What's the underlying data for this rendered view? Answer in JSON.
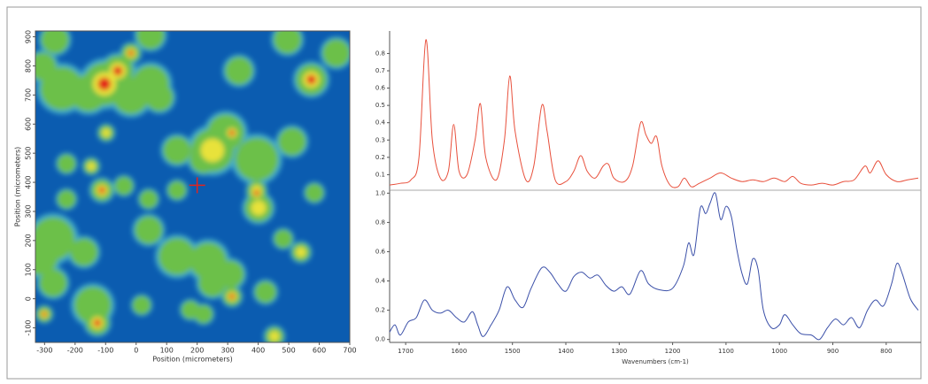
{
  "chart_data": [
    {
      "type": "heatmap",
      "xlabel": "Position (micrometers)",
      "ylabel": "Position (micrometers)",
      "xlim": [
        -330,
        700
      ],
      "ylim": [
        -150,
        920
      ],
      "xticks": [
        -300,
        -200,
        -100,
        0,
        100,
        200,
        300,
        400,
        500,
        600,
        700
      ],
      "yticks": [
        -100,
        0,
        100,
        200,
        300,
        400,
        500,
        600,
        700,
        800,
        900
      ],
      "blobs": [
        [
          -266,
          890,
          45,
          0.4
        ],
        [
          -104,
          738,
          70,
          0.9
        ],
        [
          -60,
          783,
          50,
          0.95
        ],
        [
          -17,
          844,
          30,
          0.9
        ],
        [
          -156,
          707,
          60,
          0.5
        ],
        [
          -243,
          722,
          70,
          0.5
        ],
        [
          -307,
          798,
          45,
          0.4
        ],
        [
          -17,
          698,
          60,
          0.5
        ],
        [
          47,
          738,
          60,
          0.5
        ],
        [
          76,
          692,
          45,
          0.4
        ],
        [
          337,
          783,
          45,
          0.4
        ],
        [
          496,
          890,
          45,
          0.5
        ],
        [
          574,
          753,
          50,
          0.95
        ],
        [
          294,
          570,
          60,
          0.5
        ],
        [
          314,
          570,
          30,
          0.9
        ],
        [
          250,
          510,
          70,
          0.6
        ],
        [
          395,
          479,
          70,
          0.5
        ],
        [
          511,
          540,
          45,
          0.4
        ],
        [
          221,
          479,
          45,
          0.5
        ],
        [
          395,
          373,
          30,
          0.7
        ],
        [
          395,
          364,
          30,
          0.95
        ],
        [
          401,
          312,
          45,
          0.6
        ],
        [
          134,
          510,
          45,
          0.4
        ],
        [
          -112,
          373,
          35,
          0.9
        ],
        [
          -40,
          388,
          30,
          0.4
        ],
        [
          134,
          373,
          30,
          0.4
        ],
        [
          -147,
          455,
          25,
          0.6
        ],
        [
          -228,
          464,
          30,
          0.5
        ],
        [
          -228,
          342,
          30,
          0.4
        ],
        [
          41,
          342,
          30,
          0.5
        ],
        [
          -272,
          206,
          70,
          0.5
        ],
        [
          -316,
          145,
          60,
          0.4
        ],
        [
          -171,
          160,
          45,
          0.5
        ],
        [
          41,
          236,
          45,
          0.4
        ],
        [
          134,
          145,
          60,
          0.5
        ],
        [
          236,
          130,
          60,
          0.5
        ],
        [
          308,
          84,
          45,
          0.5
        ],
        [
          314,
          8,
          30,
          0.95
        ],
        [
          250,
          54,
          45,
          0.4
        ],
        [
          221,
          -53,
          30,
          0.4
        ],
        [
          540,
          160,
          30,
          0.7
        ],
        [
          482,
          206,
          30,
          0.4
        ],
        [
          -127,
          -83,
          38,
          0.95
        ],
        [
          -142,
          -22,
          60,
          0.5
        ],
        [
          -301,
          -53,
          25,
          0.9
        ],
        [
          -272,
          54,
          45,
          0.4
        ],
        [
          18,
          -22,
          30,
          0.4
        ],
        [
          178,
          -38,
          30,
          0.4
        ],
        [
          453,
          -129,
          30,
          0.7
        ],
        [
          424,
          23,
          35,
          0.4
        ],
        [
          -98,
          570,
          25,
          0.6
        ],
        [
          656,
          844,
          45,
          0.4
        ],
        [
          584,
          364,
          30,
          0.3
        ],
        [
          47,
          905,
          45,
          0.5
        ]
      ],
      "marker": [
        200,
        390
      ]
    },
    {
      "type": "line",
      "color": "#e8503c",
      "xlim": [
        1730,
        735
      ],
      "ylim": [
        0.01,
        0.93
      ],
      "yticks": [
        0.1,
        0.2,
        0.3,
        0.4,
        0.5,
        0.6,
        0.7,
        0.8
      ],
      "x": [
        1730,
        1710,
        1690,
        1675,
        1662,
        1650,
        1635,
        1620,
        1610,
        1600,
        1585,
        1570,
        1560,
        1550,
        1530,
        1515,
        1505,
        1495,
        1475,
        1460,
        1445,
        1435,
        1420,
        1400,
        1385,
        1372,
        1360,
        1345,
        1330,
        1320,
        1310,
        1290,
        1275,
        1260,
        1250,
        1240,
        1230,
        1220,
        1205,
        1190,
        1178,
        1165,
        1150,
        1130,
        1110,
        1090,
        1070,
        1050,
        1030,
        1010,
        990,
        975,
        960,
        940,
        920,
        900,
        880,
        860,
        840,
        830,
        815,
        800,
        780,
        760,
        740
      ],
      "values": [
        0.04,
        0.05,
        0.07,
        0.2,
        0.88,
        0.3,
        0.08,
        0.12,
        0.39,
        0.12,
        0.1,
        0.3,
        0.51,
        0.2,
        0.07,
        0.3,
        0.67,
        0.35,
        0.07,
        0.15,
        0.5,
        0.35,
        0.07,
        0.06,
        0.12,
        0.21,
        0.12,
        0.08,
        0.15,
        0.16,
        0.08,
        0.06,
        0.15,
        0.4,
        0.33,
        0.28,
        0.32,
        0.15,
        0.04,
        0.03,
        0.08,
        0.03,
        0.05,
        0.08,
        0.11,
        0.08,
        0.06,
        0.07,
        0.06,
        0.08,
        0.06,
        0.09,
        0.05,
        0.04,
        0.05,
        0.04,
        0.06,
        0.07,
        0.15,
        0.11,
        0.18,
        0.1,
        0.06,
        0.07,
        0.08
      ]
    },
    {
      "type": "line",
      "color": "#3a4fa8",
      "xlim": [
        1730,
        735
      ],
      "ylim": [
        -0.02,
        1.02
      ],
      "yticks": [
        {
          "value": 0,
          "label": "0.0"
        },
        0.2,
        0.4,
        0.6,
        0.8,
        {
          "value": 1,
          "label": "1.0"
        }
      ],
      "xticks": [
        1700,
        1600,
        1500,
        1400,
        1300,
        1200,
        1100,
        1000,
        900,
        800
      ],
      "xlabel": "Wavenumbers (cm-1)",
      "x": [
        1730,
        1720,
        1710,
        1695,
        1680,
        1665,
        1650,
        1635,
        1620,
        1605,
        1590,
        1575,
        1565,
        1555,
        1540,
        1525,
        1510,
        1495,
        1480,
        1465,
        1445,
        1430,
        1415,
        1400,
        1385,
        1370,
        1355,
        1340,
        1325,
        1310,
        1295,
        1280,
        1260,
        1245,
        1225,
        1200,
        1180,
        1170,
        1160,
        1148,
        1138,
        1130,
        1120,
        1110,
        1100,
        1090,
        1080,
        1070,
        1060,
        1050,
        1040,
        1030,
        1015,
        1000,
        990,
        975,
        960,
        940,
        925,
        910,
        895,
        880,
        865,
        850,
        835,
        820,
        805,
        790,
        780,
        770,
        755,
        740
      ],
      "values": [
        0.05,
        0.1,
        0.03,
        0.12,
        0.15,
        0.27,
        0.2,
        0.18,
        0.2,
        0.15,
        0.12,
        0.19,
        0.1,
        0.02,
        0.1,
        0.2,
        0.36,
        0.27,
        0.22,
        0.35,
        0.49,
        0.46,
        0.38,
        0.33,
        0.43,
        0.46,
        0.42,
        0.44,
        0.37,
        0.33,
        0.36,
        0.31,
        0.47,
        0.38,
        0.34,
        0.35,
        0.5,
        0.66,
        0.58,
        0.9,
        0.86,
        0.93,
        1.0,
        0.82,
        0.91,
        0.84,
        0.62,
        0.45,
        0.38,
        0.55,
        0.48,
        0.2,
        0.08,
        0.1,
        0.17,
        0.1,
        0.04,
        0.03,
        0.0,
        0.08,
        0.14,
        0.1,
        0.15,
        0.08,
        0.2,
        0.27,
        0.23,
        0.38,
        0.52,
        0.45,
        0.28,
        0.2
      ]
    }
  ]
}
